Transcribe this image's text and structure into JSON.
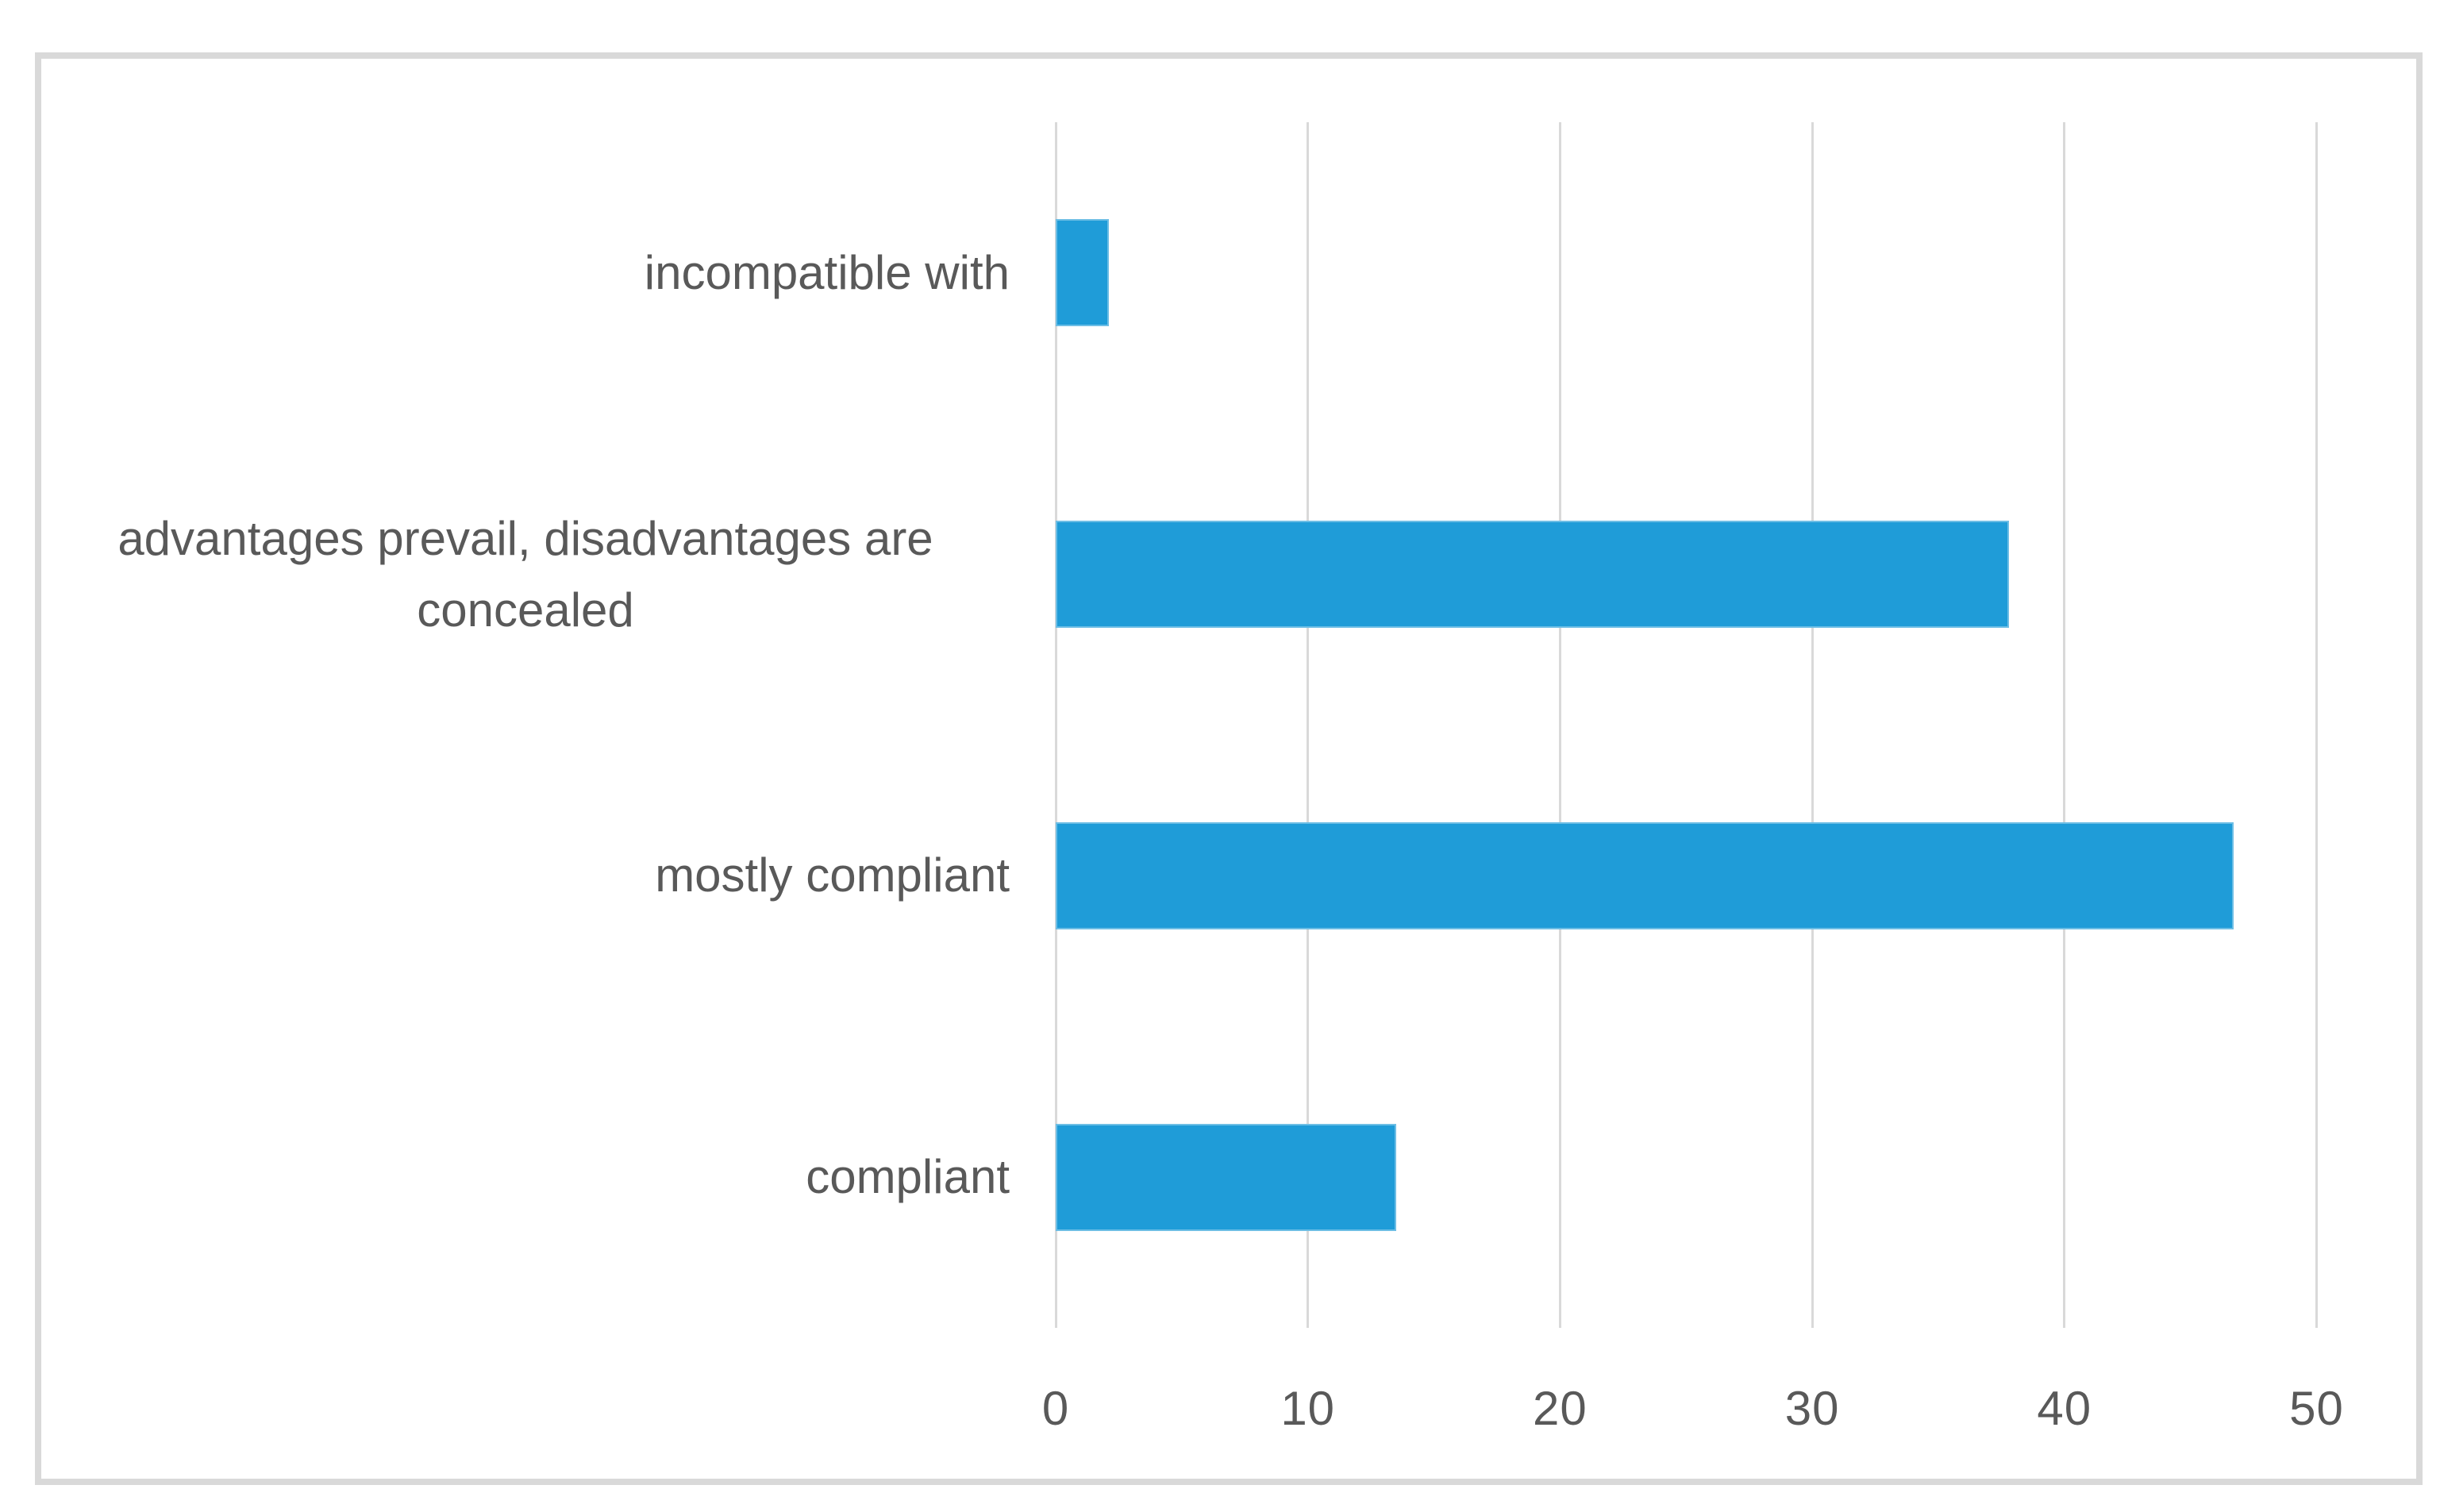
{
  "chart_data": {
    "type": "bar",
    "orientation": "horizontal",
    "title": "",
    "xlabel": "",
    "ylabel": "",
    "categories": [
      "incompatible with",
      "advantages prevail, disadvantages are concealed",
      "mostly compliant",
      "compliant"
    ],
    "values": [
      2.1,
      37.8,
      46.7,
      13.5
    ],
    "xticks": [
      0,
      10,
      20,
      30,
      40,
      50
    ],
    "xlim": [
      0,
      50
    ],
    "grid": "vertical-gridlines-on",
    "legend": "none",
    "colors": {
      "bar_fill": "#1f9cd8",
      "gridline": "#d9d9d9",
      "frame_border": "#d9d9d9",
      "axis_text": "#595959",
      "background": "#ffffff"
    }
  }
}
